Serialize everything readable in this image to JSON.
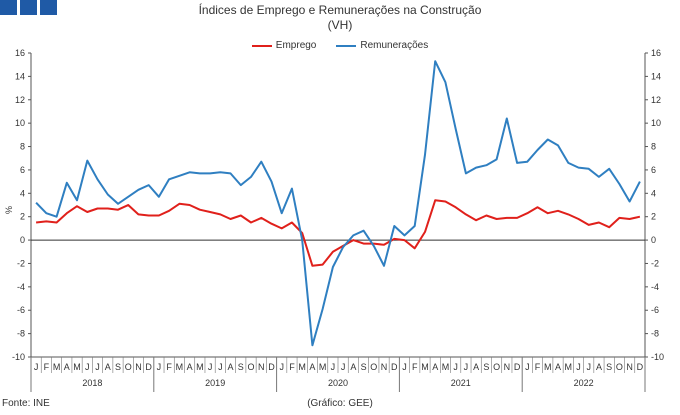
{
  "logo_colors": [
    "#1f5aa6",
    "#1f5aa6",
    "#1f5aa6"
  ],
  "title_line1": "Índices de Emprego e Remunerações na Construção",
  "title_line2": "(VH)",
  "footer": {
    "source": "Fonte: INE",
    "credit": "(Gráfico: GEE)"
  },
  "chart_data": {
    "type": "line",
    "ylabel": "%",
    "ylim": [
      -10,
      16
    ],
    "yticks": [
      -10,
      -8,
      -6,
      -4,
      -2,
      0,
      2,
      4,
      6,
      8,
      10,
      12,
      14,
      16
    ],
    "grid": false,
    "legend_position": "top-center",
    "month_labels": [
      "J",
      "F",
      "M",
      "A",
      "M",
      "J",
      "J",
      "A",
      "S",
      "O",
      "N",
      "D"
    ],
    "years": [
      "2018",
      "2019",
      "2020",
      "2021",
      "2022"
    ],
    "series": [
      {
        "name": "Emprego",
        "color": "#e0201b",
        "values": [
          1.5,
          1.6,
          1.5,
          2.3,
          2.9,
          2.4,
          2.7,
          2.7,
          2.6,
          3.0,
          2.2,
          2.1,
          2.1,
          2.5,
          3.1,
          3.0,
          2.6,
          2.4,
          2.2,
          1.8,
          2.1,
          1.5,
          1.9,
          1.4,
          1.0,
          1.5,
          0.6,
          -2.2,
          -2.1,
          -1.0,
          -0.5,
          0.0,
          -0.3,
          -0.3,
          -0.4,
          0.1,
          0.0,
          -0.7,
          0.7,
          3.4,
          3.3,
          2.8,
          2.2,
          1.7,
          2.1,
          1.8,
          1.9,
          1.9,
          2.3,
          2.8,
          2.3,
          2.5,
          2.2,
          1.8,
          1.3,
          1.5,
          1.1,
          1.9,
          1.8,
          2.0
        ]
      },
      {
        "name": "Remunerações",
        "color": "#2f7fc1",
        "values": [
          3.2,
          2.3,
          2.0,
          4.9,
          3.4,
          6.8,
          5.2,
          3.9,
          3.1,
          3.7,
          4.3,
          4.7,
          3.7,
          5.2,
          5.5,
          5.8,
          5.7,
          5.7,
          5.8,
          5.7,
          4.7,
          5.4,
          6.7,
          5.0,
          2.3,
          4.4,
          0.0,
          -9.0,
          -5.9,
          -2.3,
          -0.6,
          0.4,
          0.8,
          -0.5,
          -2.2,
          1.2,
          0.4,
          1.2,
          7.3,
          15.3,
          13.5,
          9.5,
          5.7,
          6.2,
          6.4,
          6.9,
          10.4,
          6.6,
          6.7,
          7.7,
          8.6,
          8.1,
          6.6,
          6.2,
          6.1,
          5.4,
          6.1,
          4.8,
          3.3,
          5.0
        ]
      }
    ]
  }
}
